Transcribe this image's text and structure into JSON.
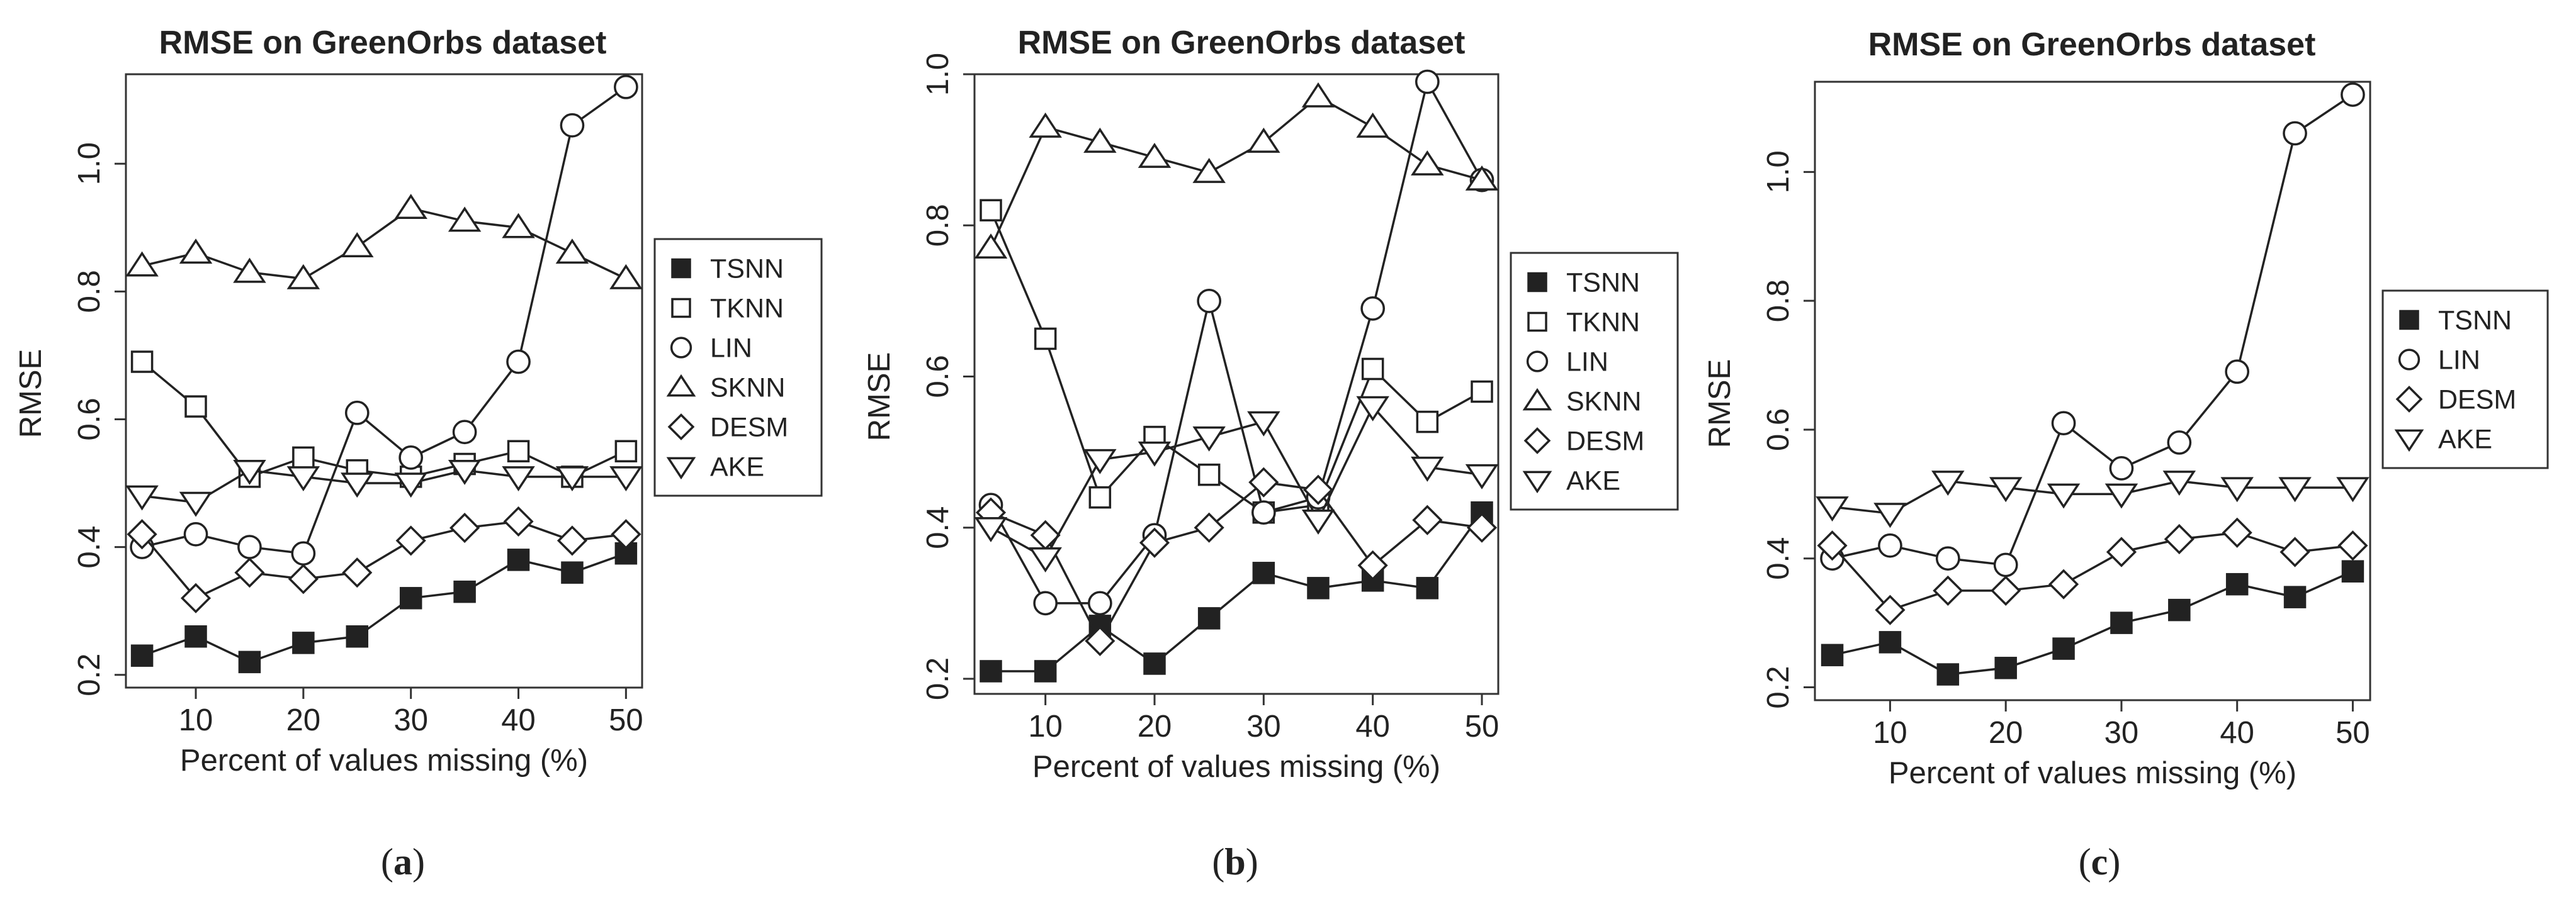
{
  "figure": {
    "captions": [
      "a",
      "b",
      "c"
    ],
    "colors": {
      "ink": "#222222",
      "axes": "#333333",
      "background": "#ffffff"
    },
    "marker_styles": {
      "TSNN": "filled-square",
      "TKNN": "open-square",
      "LIN": "open-circle",
      "SKNN": "open-triangle-up",
      "DESM": "open-diamond",
      "AKE": "open-triangle-down"
    }
  },
  "chart_data": [
    {
      "type": "line",
      "title": "RMSE on GreenOrbs dataset",
      "xlabel": "Percent of values missing (%)",
      "ylabel": "RMSE",
      "x": [
        5,
        10,
        15,
        20,
        25,
        30,
        35,
        40,
        45,
        50
      ],
      "xlim": [
        3.5,
        51.5
      ],
      "ylim": [
        0.18,
        1.14
      ],
      "xticks": [
        10,
        20,
        30,
        40,
        50
      ],
      "yticks": [
        0.2,
        0.4,
        0.6,
        0.8,
        1.0
      ],
      "ytick_labels": [
        "0.2",
        "0.4",
        "0.6",
        "0.8",
        "1.0"
      ],
      "legend_position": "right",
      "series": [
        {
          "name": "TSNN",
          "values": [
            0.23,
            0.26,
            0.22,
            0.25,
            0.26,
            0.32,
            0.33,
            0.38,
            0.36,
            0.39
          ]
        },
        {
          "name": "TKNN",
          "values": [
            0.69,
            0.62,
            0.51,
            0.54,
            0.52,
            0.51,
            0.53,
            0.55,
            0.51,
            0.55
          ]
        },
        {
          "name": "LIN",
          "values": [
            0.4,
            0.42,
            0.4,
            0.39,
            0.61,
            0.54,
            0.58,
            0.69,
            1.06,
            1.12
          ]
        },
        {
          "name": "SKNN",
          "values": [
            0.84,
            0.86,
            0.83,
            0.82,
            0.87,
            0.93,
            0.91,
            0.9,
            0.86,
            0.82
          ]
        },
        {
          "name": "DESM",
          "values": [
            0.42,
            0.32,
            0.36,
            0.35,
            0.36,
            0.41,
            0.43,
            0.44,
            0.41,
            0.42
          ]
        },
        {
          "name": "AKE",
          "values": [
            0.48,
            0.47,
            0.52,
            0.51,
            0.5,
            0.5,
            0.52,
            0.51,
            0.51,
            0.51
          ]
        }
      ]
    },
    {
      "type": "line",
      "title": "RMSE on GreenOrbs dataset",
      "xlabel": "Percent of values missing (%)",
      "ylabel": "RMSE",
      "x": [
        5,
        10,
        15,
        20,
        25,
        30,
        35,
        40,
        45,
        50
      ],
      "xlim": [
        3.5,
        51.5
      ],
      "ylim": [
        0.18,
        1.0
      ],
      "xticks": [
        10,
        20,
        30,
        40,
        50
      ],
      "yticks": [
        0.2,
        0.4,
        0.6,
        0.8,
        1.0
      ],
      "ytick_labels": [
        "0.2",
        "0.4",
        "0.6",
        "0.8",
        "1.0"
      ],
      "legend_position": "right",
      "series": [
        {
          "name": "TSNN",
          "values": [
            0.21,
            0.21,
            0.27,
            0.22,
            0.28,
            0.34,
            0.32,
            0.33,
            0.32,
            0.42
          ]
        },
        {
          "name": "TKNN",
          "values": [
            0.82,
            0.65,
            0.44,
            0.52,
            0.47,
            0.42,
            0.43,
            0.61,
            0.54,
            0.58
          ]
        },
        {
          "name": "LIN",
          "values": [
            0.43,
            0.3,
            0.3,
            0.39,
            0.7,
            0.42,
            0.44,
            0.69,
            0.99,
            0.86
          ]
        },
        {
          "name": "SKNN",
          "values": [
            0.77,
            0.93,
            0.91,
            0.89,
            0.87,
            0.91,
            0.97,
            0.93,
            0.88,
            0.86
          ]
        },
        {
          "name": "DESM",
          "values": [
            0.42,
            0.39,
            0.25,
            0.38,
            0.4,
            0.46,
            0.45,
            0.35,
            0.41,
            0.4
          ]
        },
        {
          "name": "AKE",
          "values": [
            0.4,
            0.36,
            0.49,
            0.5,
            0.52,
            0.54,
            0.41,
            0.56,
            0.48,
            0.47
          ]
        }
      ]
    },
    {
      "type": "line",
      "title": "RMSE on GreenOrbs dataset",
      "xlabel": "Percent of values missing (%)",
      "ylabel": "RMSE",
      "x": [
        5,
        10,
        15,
        20,
        25,
        30,
        35,
        40,
        45,
        50
      ],
      "xlim": [
        3.5,
        51.5
      ],
      "ylim": [
        0.18,
        1.14
      ],
      "xticks": [
        10,
        20,
        30,
        40,
        50
      ],
      "yticks": [
        0.2,
        0.4,
        0.6,
        0.8,
        1.0
      ],
      "ytick_labels": [
        "0.2",
        "0.4",
        "0.6",
        "0.8",
        "1.0"
      ],
      "legend_position": "right",
      "series": [
        {
          "name": "TSNN",
          "values": [
            0.25,
            0.27,
            0.22,
            0.23,
            0.26,
            0.3,
            0.32,
            0.36,
            0.34,
            0.38
          ]
        },
        {
          "name": "LIN",
          "values": [
            0.4,
            0.42,
            0.4,
            0.39,
            0.61,
            0.54,
            0.58,
            0.69,
            1.06,
            1.12
          ]
        },
        {
          "name": "DESM",
          "values": [
            0.42,
            0.32,
            0.35,
            0.35,
            0.36,
            0.41,
            0.43,
            0.44,
            0.41,
            0.42
          ]
        },
        {
          "name": "AKE",
          "values": [
            0.48,
            0.47,
            0.52,
            0.51,
            0.5,
            0.5,
            0.52,
            0.51,
            0.51,
            0.51
          ]
        }
      ]
    }
  ]
}
